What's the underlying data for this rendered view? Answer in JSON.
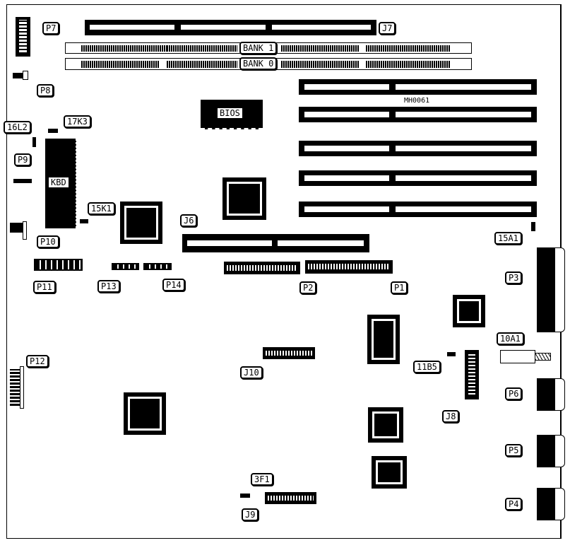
{
  "board_id": "MH0061",
  "labels": {
    "p7": "P7",
    "j7": "J7",
    "bank1": "BANK 1",
    "bank0": "BANK 0",
    "p8": "P8",
    "bios": "BIOS",
    "l16l2": "16L2",
    "l17k3": "17K3",
    "p9": "P9",
    "kbd": "KBD",
    "l15k1": "15K1",
    "p10": "P10",
    "j6": "J6",
    "l15a1": "15A1",
    "p11": "P11",
    "p13": "P13",
    "p14": "P14",
    "p2": "P2",
    "p1": "P1",
    "p3": "P3",
    "l10a1": "10A1",
    "l11b5": "11B5",
    "p12": "P12",
    "j10": "J10",
    "j8": "J8",
    "p6": "P6",
    "p5": "P5",
    "l3f1": "3F1",
    "j9": "J9",
    "p4": "P4"
  }
}
